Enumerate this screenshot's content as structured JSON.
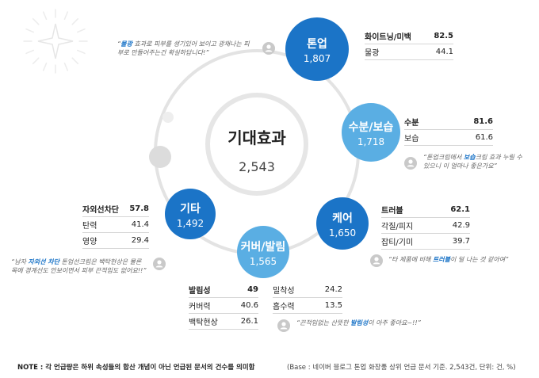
{
  "chart_data": {
    "type": "bubble-diagram",
    "title": "기대효과",
    "total": "2,543",
    "nodes": [
      {
        "name": "톤업",
        "value": "1,807",
        "color": "#1b74c7",
        "items": [
          {
            "label": "화이트닝/미백",
            "value": "82.5"
          },
          {
            "label": "물광",
            "value": "44.1"
          }
        ],
        "quote": {
          "pre": "",
          "hl": "물광",
          "post": " 효과로 피부를 생기있어 보이고 광채나는 피부로 만들어주는건 확실하답니다!"
        }
      },
      {
        "name": "수분/보습",
        "value": "1,718",
        "color": "#5aaee3",
        "items": [
          {
            "label": "수분",
            "value": "81.6"
          },
          {
            "label": "보습",
            "value": "61.6"
          }
        ],
        "quote": {
          "pre": "톤업크림에서 ",
          "hl": "보습",
          "post": "크림 효과 누릴 수 있으니 이 얼마나 좋은가요"
        }
      },
      {
        "name": "케어",
        "value": "1,650",
        "color": "#1b74c7",
        "items": [
          {
            "label": "트러블",
            "value": "62.1"
          },
          {
            "label": "각질/피지",
            "value": "42.9"
          },
          {
            "label": "잡티/기미",
            "value": "39.7"
          }
        ],
        "quote": {
          "pre": "타 제품에 비해 ",
          "hl": "트러블",
          "post": "이 덜 나는 것 같아여"
        }
      },
      {
        "name": "커버/발림",
        "value": "1,565",
        "color": "#5aaee3",
        "items": [
          {
            "label": "발림성",
            "value": "49"
          },
          {
            "label": "커버력",
            "value": "40.6"
          },
          {
            "label": "백탁현상",
            "value": "26.1"
          },
          {
            "label": "밀착성",
            "value": "24.2"
          },
          {
            "label": "흡수력",
            "value": "13.5"
          }
        ],
        "quote": {
          "pre": "끈적임없는 산뜻한 ",
          "hl": "발림성",
          "post": "이 아주 좋아요~!!"
        }
      },
      {
        "name": "기타",
        "value": "1,492",
        "color": "#1b74c7",
        "items": [
          {
            "label": "자외선차단",
            "value": "57.8"
          },
          {
            "label": "탄력",
            "value": "41.4"
          },
          {
            "label": "영양",
            "value": "29.4"
          }
        ],
        "quote": {
          "pre": "남자 ",
          "hl": "자외선 차단",
          "post": " 톤업선크림은 백탁현상은 물론 목에 경계선도 안보이면서 피부 끈적임도 없어요!!"
        }
      }
    ]
  },
  "footer": {
    "note": "NOTE : 각 언급량은 하위 속성들의 합산 개념이 아닌 언급된 문서의 건수를 의미함",
    "base": "(Base : 네이버 블로그 톤업 화장품 상위 언급 문서 기준. 2,543건, 단위: 건, %)"
  }
}
